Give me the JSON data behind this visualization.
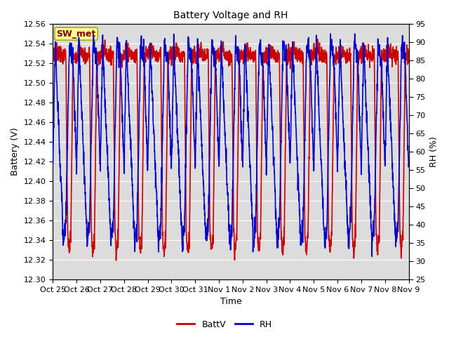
{
  "title": "Battery Voltage and RH",
  "xlabel": "Time",
  "ylabel_left": "Battery (V)",
  "ylabel_right": "RH (%)",
  "annotation": "SW_met",
  "ylim_left": [
    12.3,
    12.56
  ],
  "ylim_right": [
    25,
    95
  ],
  "yticks_left": [
    12.3,
    12.32,
    12.34,
    12.36,
    12.38,
    12.4,
    12.42,
    12.44,
    12.46,
    12.48,
    12.5,
    12.52,
    12.54,
    12.56
  ],
  "yticks_right": [
    25,
    30,
    35,
    40,
    45,
    50,
    55,
    60,
    65,
    70,
    75,
    80,
    85,
    90,
    95
  ],
  "xtick_labels": [
    "Oct 25",
    "Oct 26",
    "Oct 27",
    "Oct 28",
    "Oct 29",
    "Oct 30",
    "Oct 31",
    "Nov 1",
    "Nov 2",
    "Nov 3",
    "Nov 4",
    "Nov 5",
    "Nov 6",
    "Nov 7",
    "Nov 8",
    "Nov 9"
  ],
  "color_battv": "#cc0000",
  "color_rh": "#0000cc",
  "legend_labels": [
    "BattV",
    "RH"
  ],
  "background_color": "#ffffff",
  "plot_bg_color": "#dcdcdc",
  "annotation_bg": "#ffff99",
  "annotation_border": "#aaaa00",
  "annotation_text_color": "#800000",
  "grid_color": "#ffffff",
  "line_width": 1.2,
  "n_days": 15
}
